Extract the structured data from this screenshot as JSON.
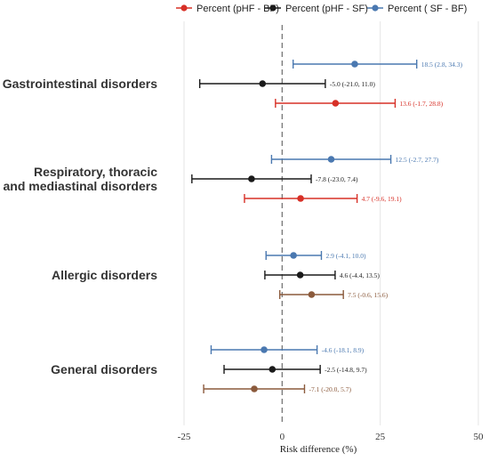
{
  "colors": {
    "pHF_BF": "#d73027",
    "pHF_SF": "#1a1a1a",
    "SF_BF": "#4a78b0",
    "brown": "#8b5a3c",
    "grid": "#e6e6e6",
    "zero_line": "#777777"
  },
  "chart_data": {
    "type": "forest",
    "title": "",
    "xlabel": "Risk difference (%)",
    "ylabel": "",
    "xlim": [
      -25,
      50
    ],
    "xticks": [
      -25,
      0,
      25,
      50
    ],
    "grid": true,
    "legend_position": "top",
    "legend": [
      {
        "key": "pHF_BF",
        "label": "Percent (pHF - BF)"
      },
      {
        "key": "pHF_SF",
        "label": "Percent (pHF - SF)"
      },
      {
        "key": "SF_BF",
        "label": "Percent ( SF  - BF)"
      }
    ],
    "groups": [
      {
        "label_lines": [
          "Gastrointestinal disorders"
        ],
        "rows": [
          {
            "series": "SF_BF",
            "estimate": 18.5,
            "lower": 2.8,
            "upper": 34.3,
            "label": "18.5 (2.8, 34.3)"
          },
          {
            "series": "pHF_SF",
            "estimate": -5.0,
            "lower": -21.0,
            "upper": 11.0,
            "label": "-5.0 (-21.0, 11.0)"
          },
          {
            "series": "pHF_BF",
            "estimate": 13.6,
            "lower": -1.7,
            "upper": 28.8,
            "label": "13.6 (-1.7, 28.8)"
          }
        ]
      },
      {
        "label_lines": [
          "Respiratory, thoracic",
          "and mediastinal disorders"
        ],
        "rows": [
          {
            "series": "SF_BF",
            "estimate": 12.5,
            "lower": -2.7,
            "upper": 27.7,
            "label": "12.5 (-2.7, 27.7)"
          },
          {
            "series": "pHF_SF",
            "estimate": -7.8,
            "lower": -23.0,
            "upper": 7.4,
            "label": "-7.8 (-23.0, 7.4)"
          },
          {
            "series": "pHF_BF",
            "estimate": 4.7,
            "lower": -9.6,
            "upper": 19.1,
            "label": "4.7 (-9.6, 19.1)"
          }
        ]
      },
      {
        "label_lines": [
          "Allergic disorders"
        ],
        "rows": [
          {
            "series": "SF_BF",
            "estimate": 2.9,
            "lower": -4.1,
            "upper": 10.0,
            "label": "2.9 (-4.1, 10.0)"
          },
          {
            "series": "pHF_SF",
            "estimate": 4.6,
            "lower": -4.4,
            "upper": 13.5,
            "label": "4.6 (-4.4, 13.5)"
          },
          {
            "series": "brown",
            "estimate": 7.5,
            "lower": -0.6,
            "upper": 15.6,
            "label": "7.5 (-0.6, 15.6)"
          }
        ]
      },
      {
        "label_lines": [
          "General disorders"
        ],
        "rows": [
          {
            "series": "SF_BF",
            "estimate": -4.6,
            "lower": -18.1,
            "upper": 8.9,
            "label": "-4.6 (-18.1, 8.9)"
          },
          {
            "series": "pHF_SF",
            "estimate": -2.5,
            "lower": -14.8,
            "upper": 9.7,
            "label": "-2.5 (-14.8, 9.7)"
          },
          {
            "series": "brown",
            "estimate": -7.1,
            "lower": -20.0,
            "upper": 5.7,
            "label": "-7.1 (-20.0, 5.7)"
          }
        ]
      }
    ]
  }
}
